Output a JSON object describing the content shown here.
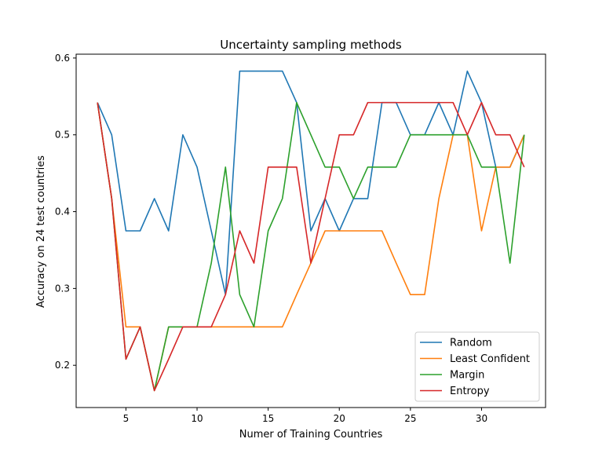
{
  "chart_data": {
    "type": "line",
    "title": "Uncertainty sampling methods",
    "xlabel": "Numer of Training Countries",
    "ylabel": "Accuracy on 24 test countries",
    "xlim": [
      1.5,
      34.5
    ],
    "ylim": [
      0.145,
      0.605
    ],
    "xticks": [
      5,
      10,
      15,
      20,
      25,
      30
    ],
    "yticks": [
      0.2,
      0.3,
      0.4,
      0.5,
      0.6
    ],
    "xtick_labels": [
      "5",
      "10",
      "15",
      "20",
      "25",
      "30"
    ],
    "ytick_labels": [
      "0.2",
      "0.3",
      "0.4",
      "0.5",
      "0.6"
    ],
    "grid": false,
    "legend_position": "lower-right",
    "x": [
      3,
      4,
      5,
      6,
      7,
      8,
      9,
      10,
      11,
      12,
      13,
      14,
      15,
      16,
      17,
      18,
      19,
      20,
      21,
      22,
      23,
      24,
      25,
      26,
      27,
      28,
      29,
      30,
      31,
      32,
      33
    ],
    "series": [
      {
        "name": "Random",
        "color": "#1f77b4",
        "values": [
          0.542,
          0.5,
          0.375,
          0.375,
          0.417,
          0.375,
          0.5,
          0.458,
          0.375,
          0.292,
          0.583,
          0.583,
          0.583,
          0.583,
          0.542,
          0.375,
          0.417,
          0.375,
          0.417,
          0.417,
          0.542,
          0.542,
          0.5,
          0.5,
          0.542,
          0.5,
          0.583,
          0.542,
          0.458,
          0.458,
          0.5
        ]
      },
      {
        "name": "Least Confident",
        "color": "#ff7f0e",
        "values": [
          0.542,
          0.417,
          0.25,
          0.25,
          0.167,
          0.25,
          0.25,
          0.25,
          0.25,
          0.25,
          0.25,
          0.25,
          0.25,
          0.25,
          0.292,
          0.333,
          0.375,
          0.375,
          0.375,
          0.375,
          0.375,
          0.333,
          0.292,
          0.292,
          0.417,
          0.5,
          0.5,
          0.375,
          0.458,
          0.458,
          0.5
        ]
      },
      {
        "name": "Margin",
        "color": "#2ca02c",
        "values": [
          0.542,
          0.417,
          0.208,
          0.25,
          0.167,
          0.25,
          0.25,
          0.25,
          0.333,
          0.458,
          0.292,
          0.25,
          0.375,
          0.417,
          0.542,
          0.5,
          0.458,
          0.458,
          0.417,
          0.458,
          0.458,
          0.458,
          0.5,
          0.5,
          0.5,
          0.5,
          0.5,
          0.458,
          0.458,
          0.333,
          0.5
        ]
      },
      {
        "name": "Entropy",
        "color": "#d62728",
        "values": [
          0.542,
          0.417,
          0.208,
          0.25,
          0.167,
          0.208,
          0.25,
          0.25,
          0.25,
          0.292,
          0.375,
          0.333,
          0.458,
          0.458,
          0.458,
          0.333,
          0.417,
          0.5,
          0.5,
          0.542,
          0.542,
          0.542,
          0.542,
          0.542,
          0.542,
          0.542,
          0.5,
          0.542,
          0.5,
          0.5,
          0.458
        ]
      }
    ]
  }
}
